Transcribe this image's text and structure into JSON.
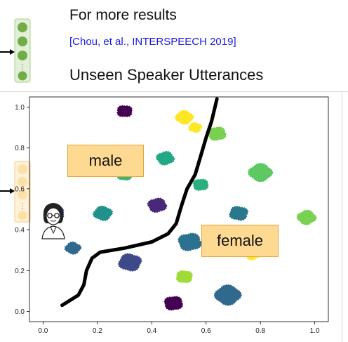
{
  "header": {
    "title": "For more results",
    "citation": "[Chou, et al., INTERSPEECH 2019]",
    "subtitle": "Unseen Speaker Utterances"
  },
  "annotations": {
    "male": "male",
    "female": "female"
  },
  "icons": [
    "green-encoder-stack-icon",
    "orange-encoder-stack-icon",
    "arrow-right-icon",
    "speaker-avatar-icon"
  ],
  "colors": {
    "green_stack": "#70ad47",
    "orange_stack": "#fbe5b6",
    "boundary": "#000000"
  },
  "chart_data": {
    "type": "scatter",
    "title": "",
    "xlabel": "",
    "ylabel": "",
    "xlim": [
      -0.05,
      1.05
    ],
    "ylim": [
      -0.05,
      1.05
    ],
    "xticks": [
      "0.0",
      "0.2",
      "0.4",
      "0.6",
      "0.8",
      "1.0"
    ],
    "yticks": [
      "0.0",
      "0.2",
      "0.4",
      "0.6",
      "0.8",
      "1.0"
    ],
    "grid": false,
    "clusters": [
      {
        "x": 0.3,
        "y": 0.98,
        "r": 0.03,
        "color": "#440154"
      },
      {
        "x": 0.52,
        "y": 0.95,
        "r": 0.034,
        "color": "#fde725"
      },
      {
        "x": 0.64,
        "y": 0.87,
        "r": 0.035,
        "color": "#7ad151"
      },
      {
        "x": 0.56,
        "y": 0.9,
        "r": 0.025,
        "color": "#fde725"
      },
      {
        "x": 0.45,
        "y": 0.75,
        "r": 0.034,
        "color": "#22a884"
      },
      {
        "x": 0.3,
        "y": 0.67,
        "r": 0.03,
        "color": "#35b779"
      },
      {
        "x": 0.8,
        "y": 0.68,
        "r": 0.045,
        "color": "#5ec962"
      },
      {
        "x": 0.58,
        "y": 0.62,
        "r": 0.03,
        "color": "#2ab07f"
      },
      {
        "x": 0.22,
        "y": 0.48,
        "r": 0.036,
        "color": "#21918c"
      },
      {
        "x": 0.42,
        "y": 0.52,
        "r": 0.036,
        "color": "#482878"
      },
      {
        "x": 0.72,
        "y": 0.48,
        "r": 0.036,
        "color": "#2a788e"
      },
      {
        "x": 0.97,
        "y": 0.46,
        "r": 0.036,
        "color": "#7ad151"
      },
      {
        "x": 0.04,
        "y": 0.48,
        "r": 0.04,
        "color": "#3b528b"
      },
      {
        "x": 0.11,
        "y": 0.31,
        "r": 0.03,
        "color": "#31688e"
      },
      {
        "x": 0.54,
        "y": 0.34,
        "r": 0.045,
        "color": "#2c728e"
      },
      {
        "x": 0.32,
        "y": 0.24,
        "r": 0.044,
        "color": "#3e4989"
      },
      {
        "x": 0.77,
        "y": 0.28,
        "r": 0.028,
        "color": "#fde725"
      },
      {
        "x": 0.52,
        "y": 0.17,
        "r": 0.032,
        "color": "#a0da39"
      },
      {
        "x": 0.68,
        "y": 0.08,
        "r": 0.05,
        "color": "#31688e"
      },
      {
        "x": 0.48,
        "y": 0.04,
        "r": 0.036,
        "color": "#440154"
      }
    ],
    "boundary": [
      [
        0.07,
        0.03
      ],
      [
        0.13,
        0.08
      ],
      [
        0.15,
        0.13
      ],
      [
        0.16,
        0.2
      ],
      [
        0.18,
        0.26
      ],
      [
        0.21,
        0.29
      ],
      [
        0.3,
        0.31
      ],
      [
        0.4,
        0.34
      ],
      [
        0.46,
        0.38
      ],
      [
        0.49,
        0.43
      ],
      [
        0.51,
        0.52
      ],
      [
        0.53,
        0.6
      ],
      [
        0.56,
        0.67
      ],
      [
        0.58,
        0.76
      ],
      [
        0.6,
        0.85
      ],
      [
        0.62,
        0.93
      ],
      [
        0.64,
        1.04
      ]
    ]
  }
}
